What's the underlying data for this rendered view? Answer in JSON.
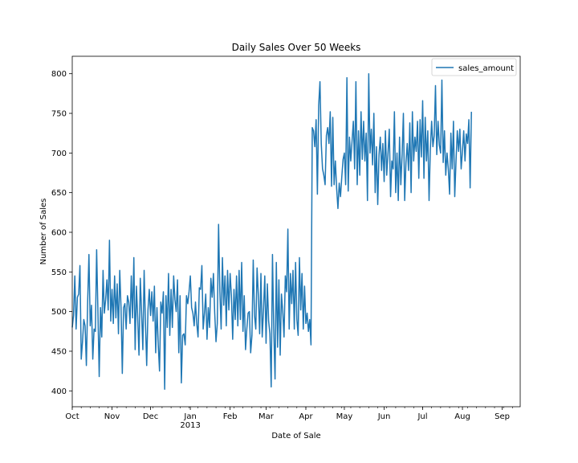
{
  "chart_data": {
    "type": "line",
    "title": "Daily Sales Over 50 Weeks",
    "xlabel": "Date of Sale",
    "ylabel": "Number of Sales",
    "x_start": "2012-10-01",
    "x_end": "2013-09-15",
    "xlim": [
      "2012-10-01",
      "2013-09-15"
    ],
    "ylim": [
      380,
      822
    ],
    "yticks": [
      400,
      450,
      500,
      550,
      600,
      650,
      700,
      750,
      800
    ],
    "xticks": [
      {
        "date": "2012-10-01",
        "label": "Oct",
        "sublabel": ""
      },
      {
        "date": "2012-11-01",
        "label": "Nov",
        "sublabel": ""
      },
      {
        "date": "2012-12-01",
        "label": "Dec",
        "sublabel": ""
      },
      {
        "date": "2013-01-01",
        "label": "Jan",
        "sublabel": "2013"
      },
      {
        "date": "2013-02-01",
        "label": "Feb",
        "sublabel": ""
      },
      {
        "date": "2013-03-01",
        "label": "Mar",
        "sublabel": ""
      },
      {
        "date": "2013-04-01",
        "label": "Apr",
        "sublabel": ""
      },
      {
        "date": "2013-05-01",
        "label": "May",
        "sublabel": ""
      },
      {
        "date": "2013-06-01",
        "label": "Jun",
        "sublabel": ""
      },
      {
        "date": "2013-07-01",
        "label": "Jul",
        "sublabel": ""
      },
      {
        "date": "2013-08-01",
        "label": "Aug",
        "sublabel": ""
      },
      {
        "date": "2013-09-01",
        "label": "Sep",
        "sublabel": ""
      }
    ],
    "legend": {
      "position": "upper right"
    },
    "grid": false,
    "series": [
      {
        "name": "sales_amount",
        "color": "#1f77b4",
        "values": [
          480,
          495,
          545,
          478,
          518,
          522,
          558,
          440,
          462,
          490,
          482,
          432,
          512,
          572,
          482,
          508,
          440,
          478,
          475,
          578,
          500,
          418,
          505,
          468,
          552,
          498,
          515,
          540,
          502,
          590,
          488,
          528,
          485,
          545,
          492,
          535,
          472,
          552,
          505,
          422,
          505,
          510,
          478,
          520,
          512,
          485,
          545,
          492,
          568,
          452,
          532,
          492,
          445,
          542,
          500,
          452,
          552,
          488,
          432,
          502,
          528,
          495,
          525,
          488,
          532,
          448,
          505,
          458,
          425,
          512,
          498,
          525,
          402,
          520,
          480,
          548,
          470,
          528,
          480,
          545,
          515,
          500,
          540,
          448,
          520,
          410,
          470,
          472,
          458,
          520,
          510,
          525,
          545,
          505,
          498,
          482,
          512,
          485,
          468,
          530,
          528,
          558,
          478,
          498,
          522,
          465,
          505,
          480,
          542,
          518,
          548,
          498,
          462,
          485,
          610,
          525,
          478,
          568,
          508,
          545,
          482,
          552,
          502,
          548,
          520,
          465,
          528,
          490,
          545,
          482,
          552,
          490,
          562,
          475,
          520,
          452,
          478,
          498,
          500,
          448,
          470,
          565,
          495,
          478,
          555,
          520,
          472,
          548,
          468,
          502,
          545,
          460,
          535,
          488,
          472,
          405,
          572,
          478,
          415,
          562,
          455,
          540,
          445,
          522,
          500,
          468,
          545,
          525,
          604,
          478,
          548,
          510,
          552,
          478,
          562,
          490,
          470,
          568,
          502,
          548,
          478,
          532,
          485,
          498,
          475,
          490,
          458,
          732,
          728,
          708,
          742,
          648,
          760,
          790,
          712,
          680,
          672,
          660,
          722,
          732,
          712,
          752,
          658,
          745,
          660,
          690,
          655,
          630,
          662,
          645,
          670,
          692,
          700,
          660,
          795,
          652,
          720,
          690,
          715,
          740,
          680,
          790,
          660,
          728,
          672,
          752,
          692,
          740,
          690,
          725,
          640,
          800,
          700,
          730,
          685,
          750,
          650,
          708,
          635,
          698,
          720,
          678,
          712,
          664,
          728,
          672,
          700,
          730,
          645,
          690,
          680,
          752,
          650,
          700,
          640,
          720,
          660,
          698,
          750,
          640,
          688,
          712,
          678,
          738,
          650,
          752,
          690,
          720,
          702,
          740,
          668,
          742,
          695,
          766,
          668,
          745,
          690,
          728,
          640,
          705,
          740,
          708,
          722,
          785,
          698,
          740,
          710,
          700,
          792,
          688,
          728,
          672,
          700,
          680,
          648,
          725,
          680,
          740,
          645,
          690,
          728,
          702,
          730,
          680,
          702,
          728,
          690,
          724,
          712,
          742,
          656,
          752
        ]
      }
    ]
  }
}
